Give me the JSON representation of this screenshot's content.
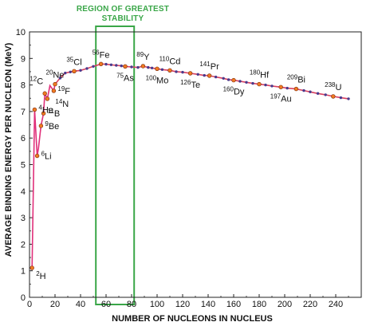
{
  "chart_data": {
    "type": "scatter",
    "title": "",
    "xlabel": "NUMBER OF NUCLEONS IN NUCLEUS",
    "ylabel": "AVERAGE BINDING ENERGY PER NUCLEON (MeV)",
    "xlim": [
      0,
      260
    ],
    "ylim": [
      0,
      10
    ],
    "x_ticks": [
      0,
      20,
      40,
      60,
      80,
      100,
      120,
      140,
      160,
      180,
      200,
      220,
      240
    ],
    "y_ticks": [
      0,
      1,
      2,
      3,
      4,
      5,
      6,
      7,
      8,
      9,
      10
    ],
    "grid": false,
    "highlight_region": {
      "label_line1": "REGION OF GREATEST",
      "label_line2": "STABILITY",
      "x_range": [
        52,
        82
      ]
    },
    "colors": {
      "light_nuclei_line": "#e0307a",
      "heavy_nuclei_line": "#d84060",
      "point": "#4a3a8c",
      "labeled_point": "#f07a20",
      "region": "#3aa648",
      "axis": "#222222"
    },
    "light_nuclei": [
      {
        "x": 2,
        "y": 1.11
      },
      {
        "x": 4,
        "y": 7.07
      },
      {
        "x": 6,
        "y": 5.33
      },
      {
        "x": 7,
        "y": 5.61
      },
      {
        "x": 9,
        "y": 6.46
      },
      {
        "x": 11,
        "y": 6.93
      },
      {
        "x": 12,
        "y": 7.68
      },
      {
        "x": 14,
        "y": 7.48
      },
      {
        "x": 16,
        "y": 7.98
      },
      {
        "x": 19,
        "y": 7.78
      },
      {
        "x": 20,
        "y": 8.03
      }
    ],
    "heavy_nuclei": [
      {
        "x": 20,
        "y": 8.03
      },
      {
        "x": 24,
        "y": 8.26
      },
      {
        "x": 28,
        "y": 8.45
      },
      {
        "x": 32,
        "y": 8.49
      },
      {
        "x": 35,
        "y": 8.52
      },
      {
        "x": 40,
        "y": 8.55
      },
      {
        "x": 45,
        "y": 8.62
      },
      {
        "x": 50,
        "y": 8.7
      },
      {
        "x": 56,
        "y": 8.79
      },
      {
        "x": 60,
        "y": 8.78
      },
      {
        "x": 64,
        "y": 8.76
      },
      {
        "x": 68,
        "y": 8.74
      },
      {
        "x": 72,
        "y": 8.72
      },
      {
        "x": 75,
        "y": 8.7
      },
      {
        "x": 80,
        "y": 8.68
      },
      {
        "x": 85,
        "y": 8.66
      },
      {
        "x": 89,
        "y": 8.71
      },
      {
        "x": 93,
        "y": 8.66
      },
      {
        "x": 96,
        "y": 8.64
      },
      {
        "x": 100,
        "y": 8.61
      },
      {
        "x": 104,
        "y": 8.58
      },
      {
        "x": 110,
        "y": 8.55
      },
      {
        "x": 115,
        "y": 8.5
      },
      {
        "x": 120,
        "y": 8.48
      },
      {
        "x": 126,
        "y": 8.44
      },
      {
        "x": 132,
        "y": 8.4
      },
      {
        "x": 137,
        "y": 8.36
      },
      {
        "x": 141,
        "y": 8.35
      },
      {
        "x": 146,
        "y": 8.3
      },
      {
        "x": 152,
        "y": 8.25
      },
      {
        "x": 156,
        "y": 8.2
      },
      {
        "x": 160,
        "y": 8.18
      },
      {
        "x": 165,
        "y": 8.14
      },
      {
        "x": 170,
        "y": 8.1
      },
      {
        "x": 175,
        "y": 8.06
      },
      {
        "x": 180,
        "y": 8.03
      },
      {
        "x": 185,
        "y": 8.0
      },
      {
        "x": 190,
        "y": 7.96
      },
      {
        "x": 197,
        "y": 7.92
      },
      {
        "x": 202,
        "y": 7.88
      },
      {
        "x": 209,
        "y": 7.85
      },
      {
        "x": 215,
        "y": 7.79
      },
      {
        "x": 220,
        "y": 7.74
      },
      {
        "x": 226,
        "y": 7.68
      },
      {
        "x": 232,
        "y": 7.63
      },
      {
        "x": 238,
        "y": 7.57
      },
      {
        "x": 244,
        "y": 7.52
      },
      {
        "x": 250,
        "y": 7.48
      }
    ],
    "labeled_nuclides": [
      {
        "mass": "2",
        "symbol": "H",
        "x": 2,
        "y": 1.11,
        "pos": "below-right"
      },
      {
        "mass": "4",
        "symbol": "He",
        "x": 4,
        "y": 7.07,
        "pos": "right"
      },
      {
        "mass": "6",
        "symbol": "Li",
        "x": 6,
        "y": 5.33,
        "pos": "right"
      },
      {
        "mass": "9",
        "symbol": "Be",
        "x": 9,
        "y": 6.46,
        "pos": "right"
      },
      {
        "mass": "11",
        "symbol": "B",
        "x": 11,
        "y": 6.93,
        "pos": "right"
      },
      {
        "mass": "12",
        "symbol": "C",
        "x": 12,
        "y": 7.68,
        "pos": "above-left"
      },
      {
        "mass": "14",
        "symbol": "N",
        "x": 14,
        "y": 7.48,
        "pos": "right-far"
      },
      {
        "mass": "19",
        "symbol": "F",
        "x": 19,
        "y": 7.78,
        "pos": "right"
      },
      {
        "mass": "20",
        "symbol": "Ne",
        "x": 20,
        "y": 8.03,
        "pos": "above"
      },
      {
        "mass": "35",
        "symbol": "Cl",
        "x": 35,
        "y": 8.52,
        "pos": "above"
      },
      {
        "mass": "56",
        "symbol": "Fe",
        "x": 56,
        "y": 8.79,
        "pos": "above"
      },
      {
        "mass": "75",
        "symbol": "As",
        "x": 75,
        "y": 8.7,
        "pos": "below"
      },
      {
        "mass": "89",
        "symbol": "Y",
        "x": 89,
        "y": 8.71,
        "pos": "above"
      },
      {
        "mass": "100",
        "symbol": "Mo",
        "x": 100,
        "y": 8.61,
        "pos": "below"
      },
      {
        "mass": "110",
        "symbol": "Cd",
        "x": 110,
        "y": 8.55,
        "pos": "above"
      },
      {
        "mass": "126",
        "symbol": "Te",
        "x": 126,
        "y": 8.44,
        "pos": "below"
      },
      {
        "mass": "141",
        "symbol": "Pr",
        "x": 141,
        "y": 8.35,
        "pos": "above"
      },
      {
        "mass": "160",
        "symbol": "Dy",
        "x": 160,
        "y": 8.18,
        "pos": "below"
      },
      {
        "mass": "180",
        "symbol": "Hf",
        "x": 180,
        "y": 8.03,
        "pos": "above"
      },
      {
        "mass": "197",
        "symbol": "Au",
        "x": 197,
        "y": 7.92,
        "pos": "below"
      },
      {
        "mass": "209",
        "symbol": "Bi",
        "x": 209,
        "y": 7.85,
        "pos": "above"
      },
      {
        "mass": "238",
        "symbol": "U",
        "x": 238,
        "y": 7.57,
        "pos": "above"
      }
    ]
  }
}
